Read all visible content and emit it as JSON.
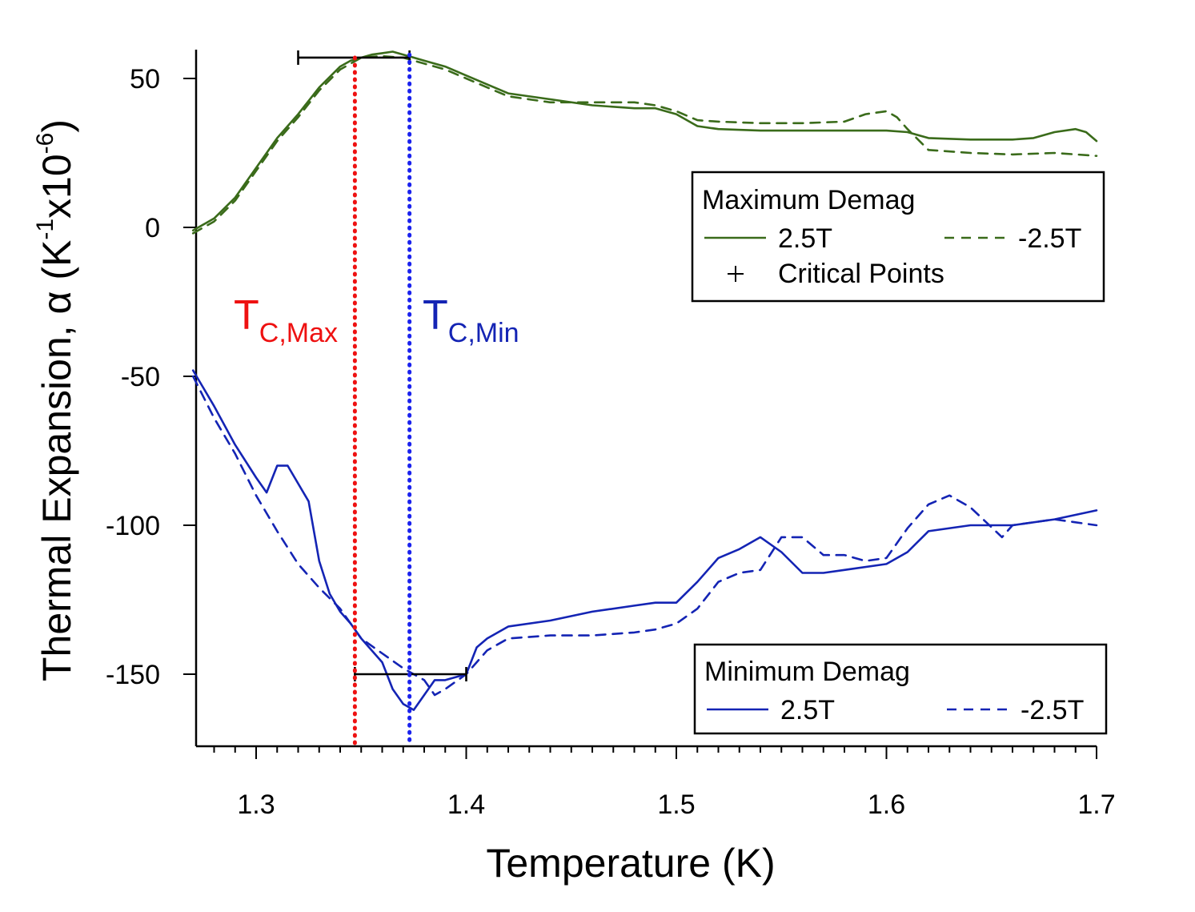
{
  "chart_data": {
    "type": "line",
    "title": "",
    "xlabel": "Temperature (K)",
    "ylabel": {
      "main": "Thermal Expansion, ",
      "symbol": "α",
      "open": " (K",
      "exp1": "-1",
      "mid": "x10",
      "exp2": "-6",
      "close": ")"
    },
    "xlim": [
      1.27,
      1.7
    ],
    "ylim": [
      -175,
      63
    ],
    "xticks": [
      1.3,
      1.4,
      1.5,
      1.6,
      1.7
    ],
    "xtick_labels": [
      "1.3",
      "1.4",
      "1.5",
      "1.6",
      "1.7"
    ],
    "yticks": [
      50,
      0,
      -50,
      -100,
      -150
    ],
    "ytick_labels": [
      "50",
      "0",
      "-50",
      "-100",
      "-150"
    ],
    "grid": false,
    "colors": {
      "max": "#3a6b1a",
      "min": "#1424b4",
      "tc_max": "#ee1111",
      "tc_min": "#1a22ee",
      "axis": "#000000"
    },
    "series": [
      {
        "name": "Maximum Demag 2.5T",
        "group": "max",
        "style": "solid",
        "x": [
          1.27,
          1.28,
          1.29,
          1.3,
          1.31,
          1.32,
          1.33,
          1.34,
          1.345,
          1.35,
          1.355,
          1.36,
          1.365,
          1.37,
          1.38,
          1.39,
          1.4,
          1.41,
          1.42,
          1.44,
          1.46,
          1.48,
          1.49,
          1.5,
          1.51,
          1.52,
          1.54,
          1.56,
          1.58,
          1.6,
          1.61,
          1.62,
          1.64,
          1.66,
          1.67,
          1.68,
          1.69,
          1.695,
          1.7
        ],
        "y": [
          -1,
          3,
          10,
          20,
          30,
          38,
          47,
          54,
          56,
          57,
          58,
          58.5,
          59,
          58,
          56,
          54,
          51,
          48,
          45,
          43,
          41,
          40,
          40,
          38,
          34,
          33,
          32.5,
          32.5,
          32.5,
          32.5,
          32,
          30,
          29.5,
          29.5,
          30,
          32,
          33,
          32,
          29
        ]
      },
      {
        "name": "Maximum Demag -2.5T",
        "group": "max",
        "style": "dashed",
        "x": [
          1.27,
          1.28,
          1.29,
          1.3,
          1.31,
          1.32,
          1.33,
          1.34,
          1.345,
          1.35,
          1.36,
          1.37,
          1.38,
          1.39,
          1.4,
          1.41,
          1.42,
          1.44,
          1.46,
          1.48,
          1.49,
          1.5,
          1.51,
          1.52,
          1.54,
          1.56,
          1.58,
          1.59,
          1.6,
          1.605,
          1.61,
          1.62,
          1.64,
          1.66,
          1.68,
          1.7
        ],
        "y": [
          -2,
          2,
          9,
          19,
          29,
          37,
          46,
          53,
          55,
          57,
          57.5,
          57,
          55,
          53,
          50,
          47,
          44,
          42,
          42,
          42,
          41,
          39,
          36,
          35.5,
          35,
          35,
          35.5,
          38,
          39,
          37,
          33,
          26,
          25,
          24.5,
          25,
          24
        ]
      },
      {
        "name": "Minimum Demag 2.5T",
        "group": "min",
        "style": "solid",
        "x": [
          1.27,
          1.28,
          1.29,
          1.3,
          1.305,
          1.31,
          1.315,
          1.325,
          1.33,
          1.335,
          1.34,
          1.345,
          1.35,
          1.36,
          1.365,
          1.37,
          1.375,
          1.38,
          1.385,
          1.39,
          1.4,
          1.405,
          1.41,
          1.42,
          1.44,
          1.46,
          1.48,
          1.49,
          1.5,
          1.51,
          1.52,
          1.53,
          1.54,
          1.55,
          1.56,
          1.57,
          1.58,
          1.6,
          1.61,
          1.62,
          1.64,
          1.66,
          1.68,
          1.7
        ],
        "y": [
          -48,
          -60,
          -73,
          -84,
          -89,
          -80,
          -80,
          -92,
          -112,
          -123,
          -129,
          -133,
          -138,
          -146,
          -155,
          -160,
          -162,
          -157,
          -152,
          -152,
          -150,
          -141,
          -138,
          -134,
          -132,
          -129,
          -127,
          -126,
          -126,
          -119,
          -111,
          -108,
          -104,
          -109,
          -116,
          -116,
          -115,
          -113,
          -109,
          -102,
          -100,
          -100,
          -98,
          -95
        ]
      },
      {
        "name": "Minimum Demag -2.5T",
        "group": "min",
        "style": "dashed",
        "x": [
          1.27,
          1.28,
          1.29,
          1.3,
          1.31,
          1.32,
          1.33,
          1.34,
          1.345,
          1.35,
          1.36,
          1.37,
          1.38,
          1.385,
          1.39,
          1.4,
          1.41,
          1.42,
          1.44,
          1.46,
          1.48,
          1.49,
          1.5,
          1.51,
          1.52,
          1.53,
          1.54,
          1.55,
          1.56,
          1.57,
          1.58,
          1.59,
          1.6,
          1.61,
          1.62,
          1.63,
          1.64,
          1.655,
          1.66,
          1.68,
          1.7
        ],
        "y": [
          -50,
          -64,
          -76,
          -90,
          -102,
          -113,
          -121,
          -128,
          -133,
          -138,
          -143,
          -148,
          -152,
          -157,
          -155,
          -150,
          -142,
          -138,
          -137,
          -137,
          -136,
          -135,
          -133,
          -128,
          -119,
          -116,
          -115,
          -104,
          -104,
          -110,
          -110,
          -112,
          -111,
          -101,
          -93,
          -90,
          -94,
          -104,
          -100,
          -98,
          -100
        ]
      }
    ],
    "critical_points": [
      {
        "group": "max",
        "x": 1.347,
        "y": 57,
        "xerr_low": 1.32,
        "xerr_high": 1.373
      },
      {
        "group": "min",
        "x": 1.373,
        "y": -150,
        "xerr_low": 1.347,
        "xerr_high": 1.4
      }
    ],
    "reference_lines": [
      {
        "id": "tc_max",
        "x": 1.347,
        "label_main": "T",
        "label_sub": "C,Max"
      },
      {
        "id": "tc_min",
        "x": 1.373,
        "label_main": "T",
        "label_sub": "C,Min"
      }
    ],
    "legends": [
      {
        "id": "max",
        "location": "right, upper-middle",
        "title": "Maximum Demag",
        "entries": [
          {
            "label": "2.5T",
            "style": "solid"
          },
          {
            "label": "-2.5T",
            "style": "dashed"
          },
          {
            "label": "Critical Points",
            "style": "marker"
          }
        ]
      },
      {
        "id": "min",
        "location": "bottom-right",
        "title": "Minimum Demag",
        "entries": [
          {
            "label": "2.5T",
            "style": "solid"
          },
          {
            "label": "-2.5T",
            "style": "dashed"
          }
        ]
      }
    ]
  }
}
